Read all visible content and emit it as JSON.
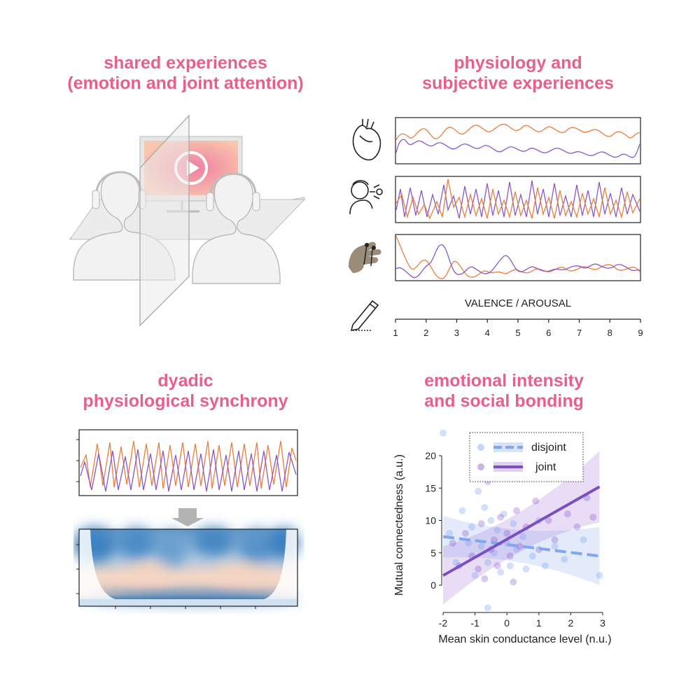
{
  "titles": {
    "shared": [
      "shared experiences",
      "(emotion and joint attention)"
    ],
    "physio": [
      "physiology and",
      "subjective experiences"
    ],
    "dyadic": [
      "dyadic",
      "physiological synchrony"
    ],
    "intensity": [
      "emotional intensity",
      "and social bonding"
    ]
  },
  "rating_scale": {
    "label": "VALENCE / AROUSAL",
    "ticks": [
      "1",
      "2",
      "3",
      "4",
      "5",
      "6",
      "7",
      "8",
      "9"
    ]
  },
  "icons": [
    "heart-icon",
    "breathing-person-icon",
    "hand-electrodes-icon",
    "pencil-icon",
    "play-icon",
    "headphones-icon"
  ],
  "colors": {
    "title": "#e8608a",
    "orange": "#ee7d3a",
    "purple": "#8a57c9",
    "joint": "#7b4fc0",
    "disjoint": "#7fa6ee"
  },
  "chart_data": {
    "type": "scatter",
    "xlabel": "Mean skin conductance level (n.u.)",
    "ylabel": "Mutual connectedness (a.u.)",
    "xlim": [
      -2,
      3
    ],
    "ylim": [
      -4,
      24
    ],
    "xticks": [
      "-2",
      "-1",
      "0",
      "1",
      "2",
      "3"
    ],
    "yticks": [
      "0",
      "5",
      "10",
      "15",
      "20"
    ],
    "legend_position": "top-right",
    "series": [
      {
        "name": "disjoint",
        "fit": {
          "x": [
            -2,
            2.9
          ],
          "y": [
            7.5,
            4.5
          ]
        },
        "points": [
          [
            -2,
            23.5
          ],
          [
            -1.8,
            8
          ],
          [
            -1.6,
            3.5
          ],
          [
            -1.4,
            11.5
          ],
          [
            -1.2,
            6.5
          ],
          [
            -1.1,
            9
          ],
          [
            -1,
            1.5
          ],
          [
            -0.9,
            14.5
          ],
          [
            -0.8,
            6
          ],
          [
            -0.7,
            12
          ],
          [
            -0.6,
            3.5
          ],
          [
            -0.5,
            10
          ],
          [
            -0.4,
            5
          ],
          [
            -0.3,
            8.5
          ],
          [
            -0.2,
            2
          ],
          [
            -0.1,
            11
          ],
          [
            0,
            6.5
          ],
          [
            0.1,
            3
          ],
          [
            0.2,
            9.5
          ],
          [
            0.3,
            5.5
          ],
          [
            0.5,
            7.5
          ],
          [
            0.6,
            2.5
          ],
          [
            0.8,
            4.5
          ],
          [
            1,
            10
          ],
          [
            1.2,
            3
          ],
          [
            1.5,
            6
          ],
          [
            1.8,
            4
          ],
          [
            2.4,
            7
          ],
          [
            2.9,
            1.5
          ],
          [
            -0.6,
            -3.5
          ]
        ]
      },
      {
        "name": "joint",
        "fit": {
          "x": [
            -2,
            2.9
          ],
          "y": [
            1.5,
            15.2
          ]
        },
        "points": [
          [
            -1.7,
            6.5
          ],
          [
            -1.5,
            3
          ],
          [
            -1.3,
            8
          ],
          [
            -1.1,
            4.5
          ],
          [
            -0.9,
            2.5
          ],
          [
            -0.8,
            9.5
          ],
          [
            -0.6,
            16
          ],
          [
            -0.5,
            5.5
          ],
          [
            -0.4,
            7
          ],
          [
            -0.3,
            3
          ],
          [
            -0.2,
            10.5
          ],
          [
            0,
            8
          ],
          [
            0.1,
            4.5
          ],
          [
            0.3,
            11.5
          ],
          [
            0.4,
            6
          ],
          [
            0.6,
            9
          ],
          [
            0.9,
            13
          ],
          [
            1,
            5.5
          ],
          [
            1.3,
            10
          ],
          [
            1.5,
            7
          ],
          [
            1.9,
            11
          ],
          [
            2.2,
            9
          ],
          [
            2.5,
            13.5
          ],
          [
            2.7,
            10.5
          ],
          [
            -0.7,
            1
          ],
          [
            0.2,
            0.5
          ]
        ]
      }
    ]
  }
}
